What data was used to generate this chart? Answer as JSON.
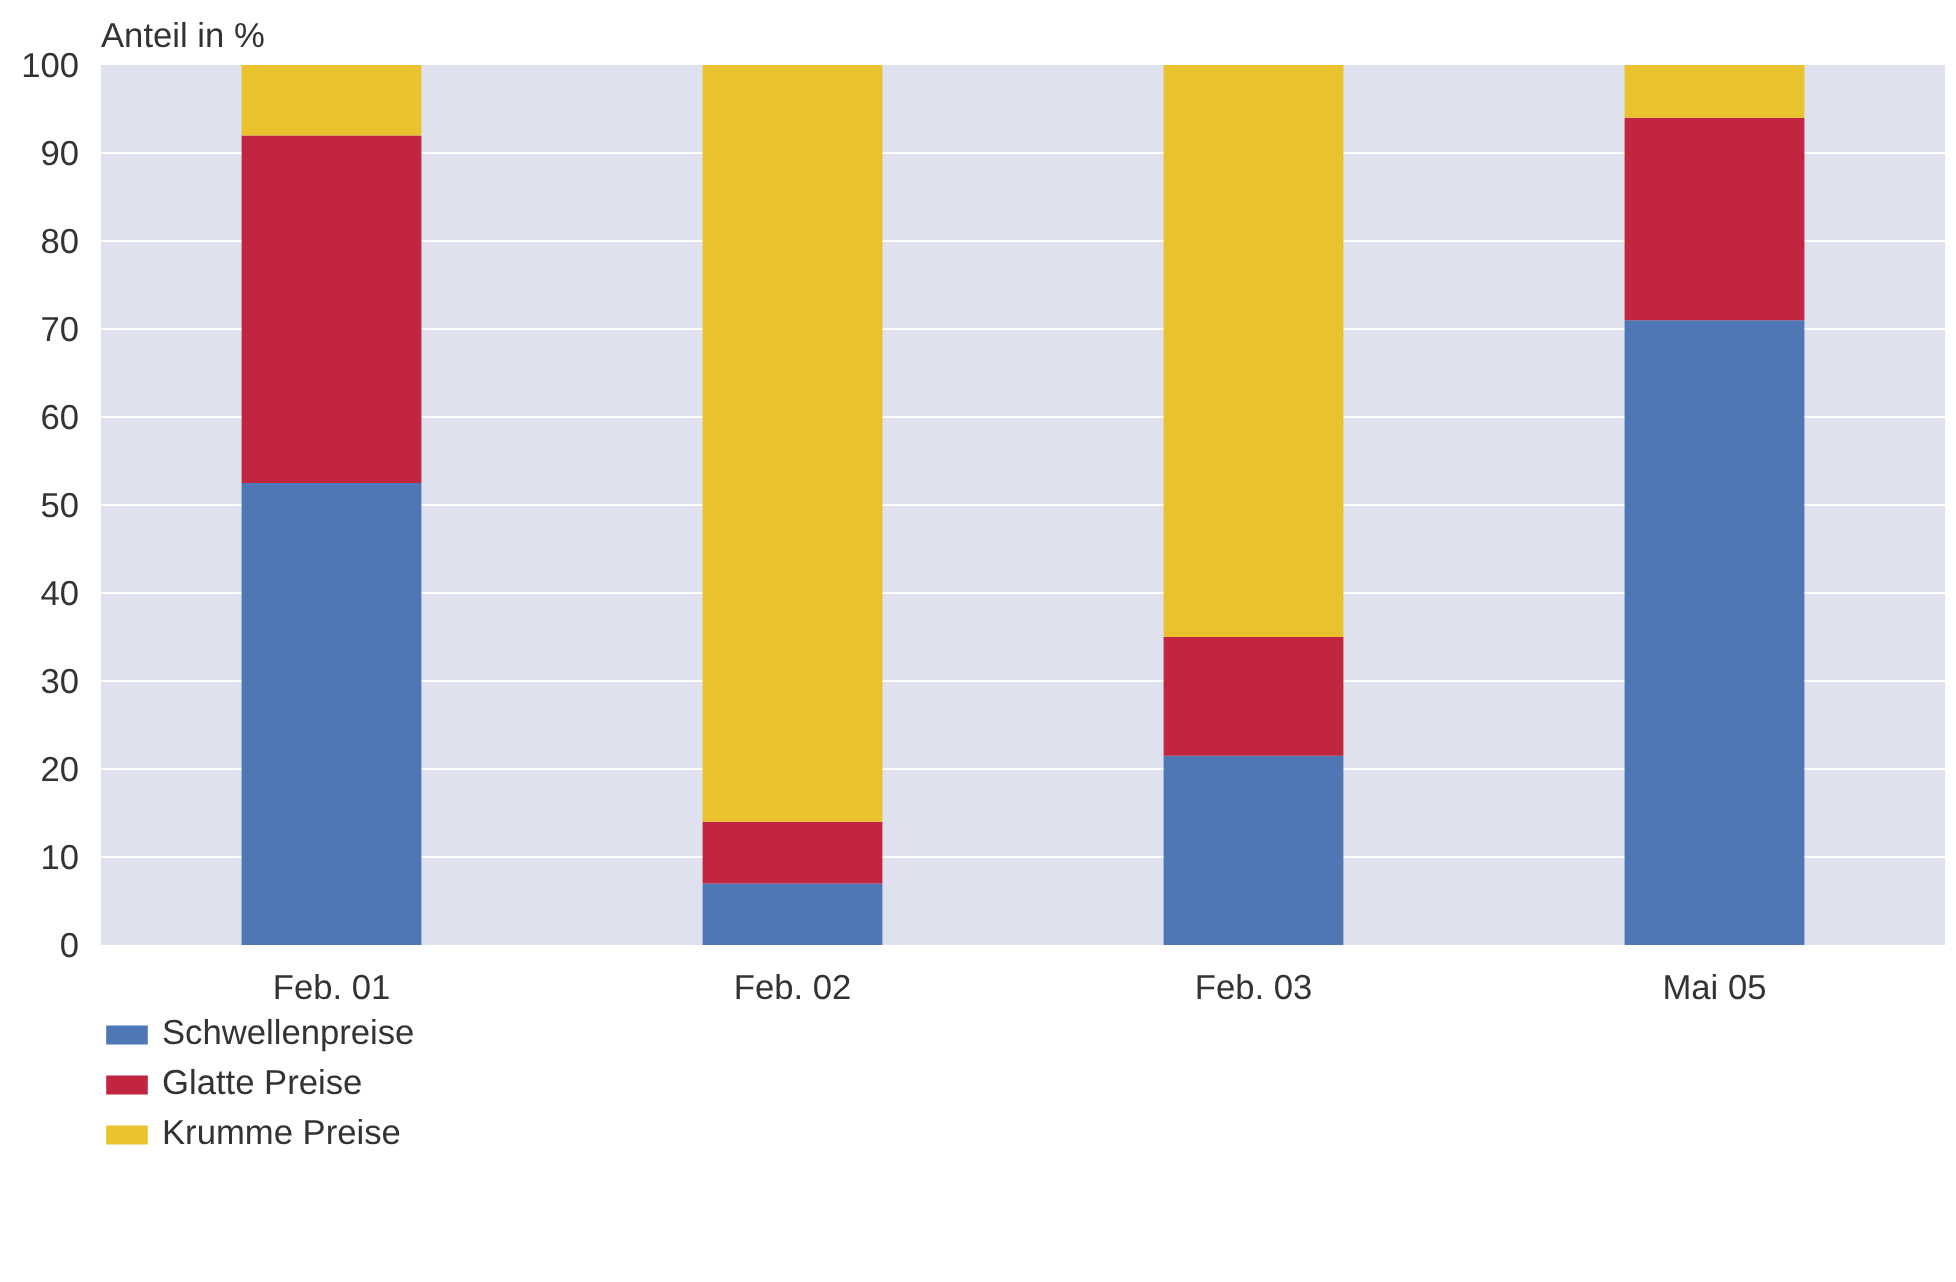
{
  "chart_data": {
    "type": "bar",
    "stacked": true,
    "ylabel": "Anteil in %",
    "categories": [
      "Feb. 01",
      "Feb. 02",
      "Feb. 03",
      "Mai 05"
    ],
    "series": [
      {
        "name": "Schwellenpreise",
        "color": "#5077b5",
        "values": [
          52.5,
          7,
          21.5,
          71
        ]
      },
      {
        "name": "Glatte Preise",
        "color": "#c1253f",
        "values": [
          39.5,
          7,
          13.5,
          23
        ]
      },
      {
        "name": "Krumme Preise",
        "color": "#e9c22e",
        "values": [
          8,
          86,
          65,
          6
        ]
      }
    ],
    "ylim": [
      0,
      100
    ],
    "yticks": [
      0,
      10,
      20,
      30,
      40,
      50,
      60,
      70,
      80,
      90,
      100
    ],
    "grid": "y",
    "legend": "bottom left"
  }
}
